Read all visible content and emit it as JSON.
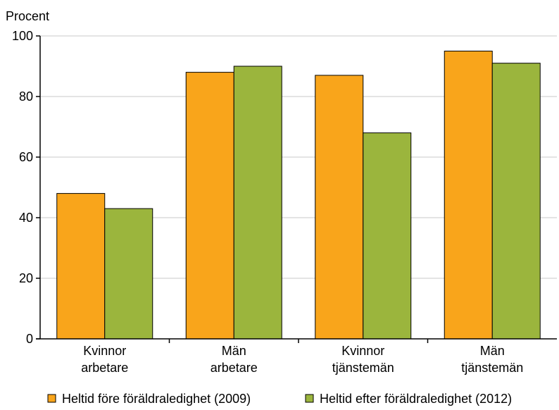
{
  "chart_data": {
    "type": "bar",
    "ylabel": "Procent",
    "ylim": [
      0,
      100
    ],
    "yticks": [
      0,
      20,
      40,
      60,
      80,
      100
    ],
    "grid": true,
    "legend_position": "bottom",
    "categories": [
      [
        "Kvinnor",
        "arbetare"
      ],
      [
        "Män",
        "arbetare"
      ],
      [
        "Kvinnor",
        "tjänstemän"
      ],
      [
        "Män",
        "tjänstemän"
      ]
    ],
    "series": [
      {
        "name": "Heltid före föräldraledighet (2009)",
        "color": "#F9A51B",
        "values": [
          48,
          88,
          87,
          95
        ]
      },
      {
        "name": "Heltid efter föräldraledighet (2012)",
        "color": "#9BB53D",
        "values": [
          43,
          90,
          68,
          91
        ]
      }
    ]
  }
}
